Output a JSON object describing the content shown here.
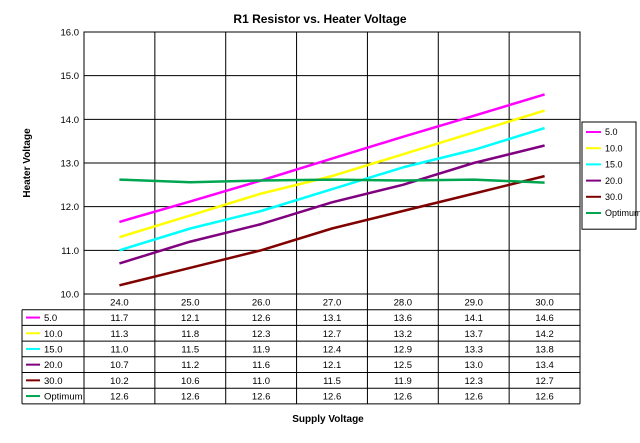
{
  "chart_data": {
    "type": "line",
    "title": "R1 Resistor vs. Heater Voltage",
    "xlabel": "Supply Voltage",
    "ylabel": "Heater Voltage",
    "ylim": [
      10.0,
      16.0
    ],
    "yticks": [
      "10.0",
      "11.0",
      "12.0",
      "13.0",
      "14.0",
      "15.0",
      "16.0"
    ],
    "categories": [
      "24.0",
      "25.0",
      "26.0",
      "27.0",
      "28.0",
      "29.0",
      "30.0"
    ],
    "grid": true,
    "legend": "right",
    "data_table": true,
    "series": [
      {
        "name": "5.0",
        "color": "#ff00ff",
        "values": [
          11.65,
          12.12,
          12.6,
          13.1,
          13.6,
          14.08,
          14.57
        ],
        "labels": [
          "11.7",
          "12.1",
          "12.6",
          "13.1",
          "13.6",
          "14.1",
          "14.6"
        ]
      },
      {
        "name": "10.0",
        "color": "#ffff00",
        "values": [
          11.3,
          11.8,
          12.3,
          12.7,
          13.2,
          13.7,
          14.2
        ],
        "labels": [
          "11.3",
          "11.8",
          "12.3",
          "12.7",
          "13.2",
          "13.7",
          "14.2"
        ]
      },
      {
        "name": "15.0",
        "color": "#00ffff",
        "values": [
          11.0,
          11.5,
          11.9,
          12.4,
          12.9,
          13.3,
          13.8
        ],
        "labels": [
          "11.0",
          "11.5",
          "11.9",
          "12.4",
          "12.9",
          "13.3",
          "13.8"
        ]
      },
      {
        "name": "20.0",
        "color": "#800080",
        "values": [
          10.7,
          11.2,
          11.6,
          12.1,
          12.5,
          13.0,
          13.4
        ],
        "labels": [
          "10.7",
          "11.2",
          "11.6",
          "12.1",
          "12.5",
          "13.0",
          "13.4"
        ]
      },
      {
        "name": "30.0",
        "color": "#800000",
        "values": [
          10.2,
          10.6,
          11.0,
          11.5,
          11.9,
          12.3,
          12.7
        ],
        "labels": [
          "10.2",
          "10.6",
          "11.0",
          "11.5",
          "11.9",
          "12.3",
          "12.7"
        ]
      },
      {
        "name": "Optimum",
        "color": "#00a550",
        "values": [
          12.62,
          12.56,
          12.6,
          12.62,
          12.6,
          12.62,
          12.55
        ],
        "labels": [
          "12.6",
          "12.6",
          "12.6",
          "12.6",
          "12.6",
          "12.6",
          "12.6"
        ]
      }
    ]
  }
}
